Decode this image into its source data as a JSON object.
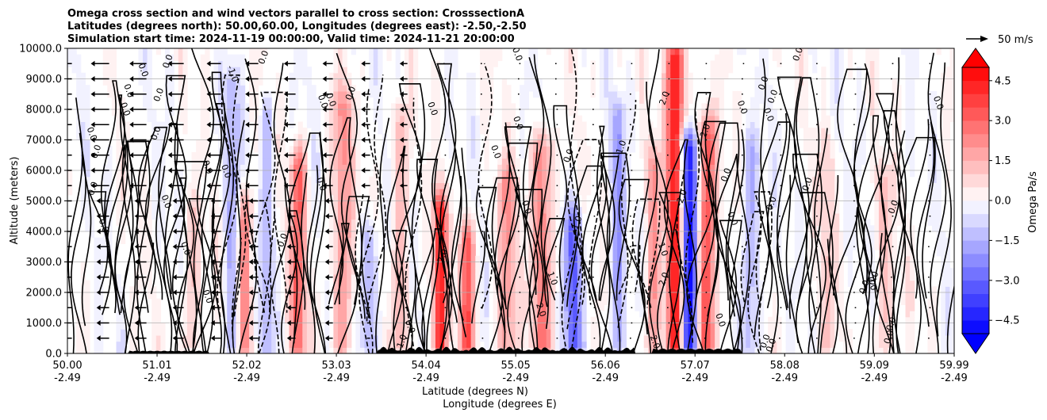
{
  "chart_data": {
    "type": "contour",
    "title_lines": [
      "Omega cross section and wind vectors parallel to cross section: CrosssectionA",
      "Latitudes (degrees north): 50.00,60.00, Longitudes (degrees east): -2.50,-2.50",
      "Simulation start time: 2024-11-19 00:00:00, Valid time: 2024-11-21 20:00:00"
    ],
    "xlabel_1": "Latitude (degrees N)",
    "xlabel_2": "Longitude (degrees E)",
    "ylabel": "Altitude (meters)",
    "xlim": [
      50.0,
      59.99
    ],
    "ylim": [
      0,
      10000
    ],
    "x_ticks": [
      {
        "lat": "50.00",
        "lon": "-2.49",
        "value": 50.0
      },
      {
        "lat": "51.01",
        "lon": "-2.49",
        "value": 51.01
      },
      {
        "lat": "52.02",
        "lon": "-2.49",
        "value": 52.02
      },
      {
        "lat": "53.03",
        "lon": "-2.49",
        "value": 53.03
      },
      {
        "lat": "54.04",
        "lon": "-2.49",
        "value": 54.04
      },
      {
        "lat": "55.05",
        "lon": "-2.49",
        "value": 55.05
      },
      {
        "lat": "56.06",
        "lon": "-2.49",
        "value": 56.06
      },
      {
        "lat": "57.07",
        "lon": "-2.49",
        "value": 57.07
      },
      {
        "lat": "58.08",
        "lon": "-2.49",
        "value": 58.08
      },
      {
        "lat": "59.09",
        "lon": "-2.49",
        "value": 59.09
      },
      {
        "lat": "59.99",
        "lon": "-2.49",
        "value": 59.99
      }
    ],
    "y_ticks": [
      {
        "label": "0.0",
        "value": 0
      },
      {
        "label": "1000.0",
        "value": 1000
      },
      {
        "label": "2000.0",
        "value": 2000
      },
      {
        "label": "3000.0",
        "value": 3000
      },
      {
        "label": "4000.0",
        "value": 4000
      },
      {
        "label": "5000.0",
        "value": 5000
      },
      {
        "label": "6000.0",
        "value": 6000
      },
      {
        "label": "7000.0",
        "value": 7000
      },
      {
        "label": "8000.0",
        "value": 8000
      },
      {
        "label": "9000.0",
        "value": 9000
      },
      {
        "label": "10000.0",
        "value": 10000
      }
    ],
    "grid": "horizontal",
    "colorbar": {
      "label": "Omega Pa/s",
      "range": [
        -5.0,
        5.0
      ],
      "extend": "both",
      "ticks": [
        {
          "label": "4.5",
          "value": 4.5
        },
        {
          "label": "3.0",
          "value": 3.0
        },
        {
          "label": "1.5",
          "value": 1.5
        },
        {
          "label": "0.0",
          "value": 0.0
        },
        {
          "label": "−1.5",
          "value": -1.5
        },
        {
          "label": "−3.0",
          "value": -3.0
        },
        {
          "label": "−4.5",
          "value": -4.5
        }
      ],
      "colormap": "bwr"
    },
    "quiver_key": {
      "label": "50 m/s",
      "value": 50
    },
    "contour_levels_labeled": [
      "-2.0",
      "-1.0",
      "0.0",
      "1.0",
      "2.0"
    ],
    "omega_features": [
      {
        "lat": 51.4,
        "sign": "positive",
        "peak": 1.0,
        "alt_top": 4200
      },
      {
        "lat": 51.85,
        "sign": "negative",
        "peak": -1.5,
        "alt_top": 8500
      },
      {
        "lat": 52.0,
        "sign": "positive",
        "peak": 2.5,
        "alt_top": 4500
      },
      {
        "lat": 52.25,
        "sign": "negative",
        "peak": -1.5,
        "alt_top": 7500
      },
      {
        "lat": 52.6,
        "sign": "positive",
        "peak": 3.0,
        "alt_top": 6000
      },
      {
        "lat": 53.1,
        "sign": "positive",
        "peak": 2.0,
        "alt_top": 8000
      },
      {
        "lat": 53.4,
        "sign": "negative",
        "peak": -1.5,
        "alt_top": 3500
      },
      {
        "lat": 53.75,
        "sign": "positive",
        "peak": 1.5,
        "alt_top": 7500
      },
      {
        "lat": 54.2,
        "sign": "positive",
        "peak": 4.5,
        "alt_top": 4500
      },
      {
        "lat": 54.5,
        "sign": "positive",
        "peak": 3.5,
        "alt_top": 3500
      },
      {
        "lat": 54.95,
        "sign": "positive",
        "peak": 2.0,
        "alt_top": 5500
      },
      {
        "lat": 55.35,
        "sign": "positive",
        "peak": 2.5,
        "alt_top": 6500
      },
      {
        "lat": 55.7,
        "sign": "negative",
        "peak": -3.0,
        "alt_top": 4000
      },
      {
        "lat": 56.2,
        "sign": "negative",
        "peak": -2.0,
        "alt_top": 7500
      },
      {
        "lat": 56.6,
        "sign": "positive",
        "peak": 2.0,
        "alt_top": 6000
      },
      {
        "lat": 56.85,
        "sign": "positive",
        "peak": 5.0,
        "alt_top": 9500
      },
      {
        "lat": 57.0,
        "sign": "negative",
        "peak": -5.0,
        "alt_top": 6500
      },
      {
        "lat": 57.2,
        "sign": "positive",
        "peak": 3.5,
        "alt_top": 7000
      },
      {
        "lat": 57.7,
        "sign": "negative",
        "peak": -1.5,
        "alt_top": 6500
      },
      {
        "lat": 58.55,
        "sign": "positive",
        "peak": 1.0,
        "alt_top": 6500
      },
      {
        "lat": 59.2,
        "sign": "positive",
        "peak": 1.0,
        "alt_top": 5500
      }
    ]
  }
}
